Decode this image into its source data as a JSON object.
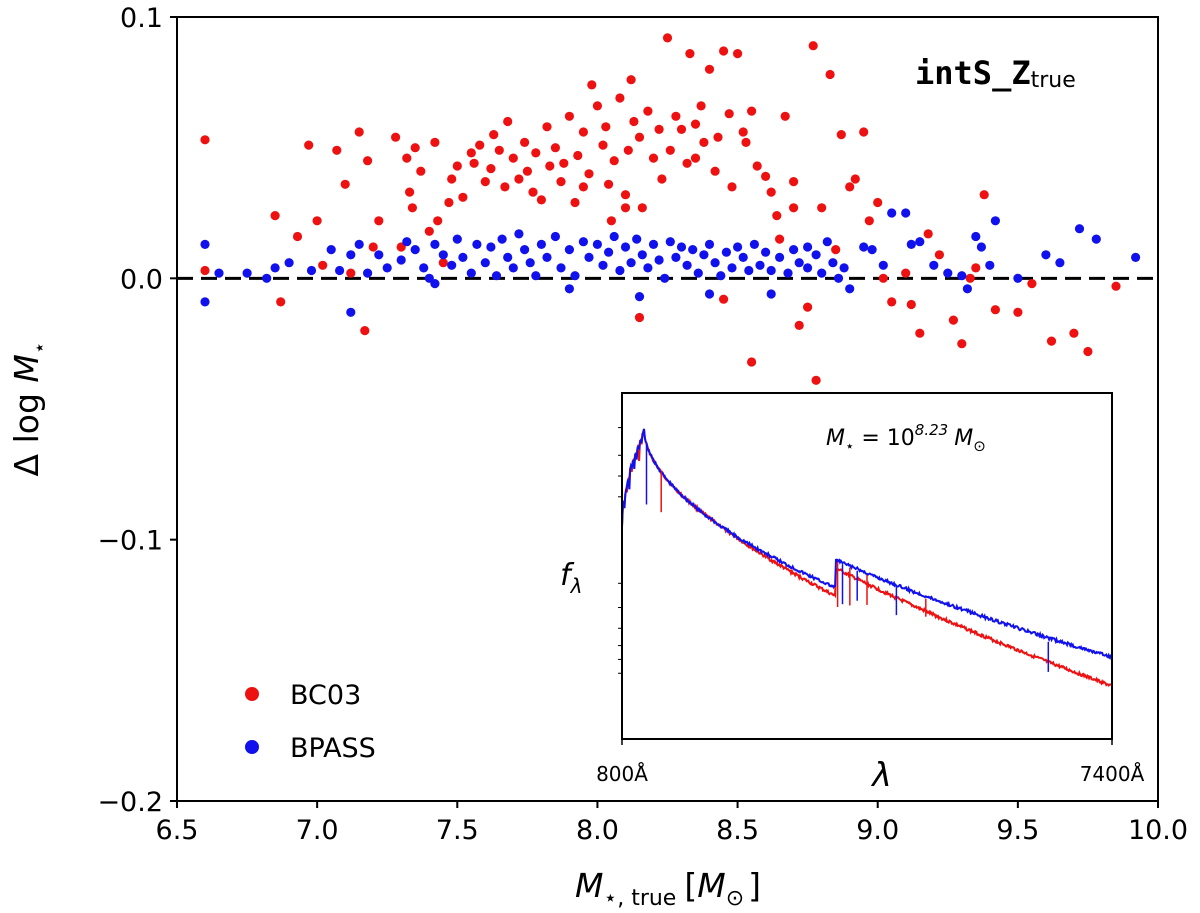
{
  "chart_data": [
    {
      "type": "scatter",
      "title": "",
      "annotation": {
        "code": "intS_Z",
        "subscript": "true"
      },
      "xlabel": {
        "main": "M",
        "sub1": "⋆, true",
        "unit_open": "[",
        "unit_main": "M",
        "unit_sub": "⊙",
        "unit_close": "]"
      },
      "ylabel": {
        "prefix": "Δ log ",
        "main": "M",
        "sub": "⋆"
      },
      "xlim": [
        6.5,
        10.0
      ],
      "ylim": [
        -0.2,
        0.1
      ],
      "xticks": [
        "6.5",
        "7.0",
        "7.5",
        "8.0",
        "8.5",
        "9.0",
        "9.5",
        "10.0"
      ],
      "yticks": [
        "0.1",
        "0.0",
        "−0.1",
        "−0.2"
      ],
      "xtick_values": [
        6.5,
        7.0,
        7.5,
        8.0,
        8.5,
        9.0,
        9.5,
        10.0
      ],
      "ytick_values": [
        0.1,
        0.0,
        -0.1,
        -0.2
      ],
      "reference_line": {
        "y": 0.0,
        "style": "dashed"
      },
      "legend": {
        "position": "bottom-left"
      },
      "series": [
        {
          "name": "BC03",
          "color": "#ee1111",
          "points": [
            [
              6.6,
              0.053
            ],
            [
              6.6,
              0.003
            ],
            [
              6.85,
              0.024
            ],
            [
              6.87,
              -0.009
            ],
            [
              6.93,
              0.016
            ],
            [
              6.97,
              0.051
            ],
            [
              7.0,
              0.022
            ],
            [
              7.02,
              0.005
            ],
            [
              7.07,
              0.049
            ],
            [
              7.1,
              0.036
            ],
            [
              7.12,
              0.002
            ],
            [
              7.15,
              0.056
            ],
            [
              7.17,
              -0.02
            ],
            [
              7.18,
              0.045
            ],
            [
              7.2,
              0.012
            ],
            [
              7.22,
              0.022
            ],
            [
              7.28,
              0.054
            ],
            [
              7.3,
              0.012
            ],
            [
              7.32,
              0.046
            ],
            [
              7.33,
              0.033
            ],
            [
              7.34,
              0.027
            ],
            [
              7.35,
              0.05
            ],
            [
              7.37,
              0.041
            ],
            [
              7.4,
              0.018
            ],
            [
              7.42,
              0.052
            ],
            [
              7.43,
              0.022
            ],
            [
              7.45,
              0.006
            ],
            [
              7.47,
              0.029
            ],
            [
              7.48,
              0.038
            ],
            [
              7.5,
              0.043
            ],
            [
              7.52,
              0.031
            ],
            [
              7.55,
              0.048
            ],
            [
              7.56,
              0.044
            ],
            [
              7.58,
              0.051
            ],
            [
              7.6,
              0.037
            ],
            [
              7.62,
              0.042
            ],
            [
              7.63,
              0.055
            ],
            [
              7.65,
              0.049
            ],
            [
              7.67,
              0.035
            ],
            [
              7.68,
              0.06
            ],
            [
              7.7,
              0.046
            ],
            [
              7.72,
              0.038
            ],
            [
              7.74,
              0.052
            ],
            [
              7.75,
              0.041
            ],
            [
              7.77,
              0.033
            ],
            [
              7.78,
              0.048
            ],
            [
              7.8,
              0.03
            ],
            [
              7.82,
              0.058
            ],
            [
              7.83,
              0.043
            ],
            [
              7.85,
              0.05
            ],
            [
              7.87,
              0.037
            ],
            [
              7.88,
              0.044
            ],
            [
              7.9,
              0.062
            ],
            [
              7.92,
              0.029
            ],
            [
              7.93,
              0.047
            ],
            [
              7.95,
              0.056
            ],
            [
              7.97,
              0.04
            ],
            [
              7.98,
              0.074
            ],
            [
              8.0,
              0.066
            ],
            [
              8.02,
              0.051
            ],
            [
              8.03,
              0.058
            ],
            [
              8.04,
              0.036
            ],
            [
              8.05,
              0.022
            ],
            [
              8.06,
              0.045
            ],
            [
              8.08,
              0.069
            ],
            [
              8.1,
              0.032
            ],
            [
              8.11,
              0.049
            ],
            [
              8.12,
              0.076
            ],
            [
              8.13,
              0.06
            ],
            [
              8.15,
              0.054
            ],
            [
              8.16,
              0.027
            ],
            [
              8.18,
              0.064
            ],
            [
              8.2,
              0.046
            ],
            [
              8.22,
              0.057
            ],
            [
              8.23,
              0.038
            ],
            [
              8.25,
              0.092
            ],
            [
              8.26,
              0.049
            ],
            [
              8.28,
              0.062
            ],
            [
              8.3,
              0.057
            ],
            [
              8.32,
              0.044
            ],
            [
              8.33,
              0.086
            ],
            [
              8.35,
              0.059
            ],
            [
              8.37,
              0.066
            ],
            [
              8.38,
              0.052
            ],
            [
              8.4,
              0.08
            ],
            [
              8.42,
              0.041
            ],
            [
              8.43,
              0.054
            ],
            [
              8.45,
              0.087
            ],
            [
              8.47,
              0.063
            ],
            [
              8.48,
              0.035
            ],
            [
              8.5,
              0.086
            ],
            [
              8.52,
              0.056
            ],
            [
              8.53,
              0.052
            ],
            [
              8.55,
              0.064
            ],
            [
              8.57,
              0.043
            ],
            [
              8.6,
              0.039
            ],
            [
              8.62,
              0.033
            ],
            [
              8.64,
              0.024
            ],
            [
              8.65,
              0.015
            ],
            [
              8.67,
              0.062
            ],
            [
              8.7,
              0.037
            ],
            [
              8.72,
              -0.018
            ],
            [
              8.75,
              -0.011
            ],
            [
              8.77,
              0.089
            ],
            [
              8.78,
              -0.039
            ],
            [
              8.8,
              0.027
            ],
            [
              8.83,
              0.078
            ],
            [
              8.85,
              0.011
            ],
            [
              8.87,
              0.055
            ],
            [
              8.9,
              0.035
            ],
            [
              8.92,
              0.038
            ],
            [
              8.95,
              0.056
            ],
            [
              8.97,
              0.022
            ],
            [
              9.0,
              0.029
            ],
            [
              9.02,
              0.0
            ],
            [
              9.05,
              -0.009
            ],
            [
              9.1,
              0.002
            ],
            [
              9.12,
              -0.01
            ],
            [
              9.15,
              -0.021
            ],
            [
              9.18,
              0.017
            ],
            [
              9.22,
              0.009
            ],
            [
              9.27,
              -0.016
            ],
            [
              9.3,
              -0.025
            ],
            [
              9.33,
              0.0
            ],
            [
              9.35,
              0.004
            ],
            [
              9.38,
              0.032
            ],
            [
              9.42,
              -0.012
            ],
            [
              9.5,
              -0.013
            ],
            [
              9.55,
              -0.002
            ],
            [
              9.62,
              -0.024
            ],
            [
              9.7,
              -0.021
            ],
            [
              9.75,
              -0.028
            ],
            [
              9.85,
              -0.003
            ],
            [
              8.55,
              -0.032
            ],
            [
              8.7,
              0.027
            ],
            [
              8.35,
              0.046
            ],
            [
              7.95,
              0.035
            ],
            [
              8.1,
              0.027
            ],
            [
              8.45,
              -0.008
            ],
            [
              8.15,
              -0.015
            ]
          ]
        },
        {
          "name": "BPASS",
          "color": "#1111ee",
          "points": [
            [
              6.6,
              0.013
            ],
            [
              6.6,
              -0.009
            ],
            [
              6.65,
              0.002
            ],
            [
              6.75,
              0.002
            ],
            [
              6.82,
              0.0
            ],
            [
              6.85,
              0.004
            ],
            [
              6.9,
              0.006
            ],
            [
              6.98,
              0.003
            ],
            [
              7.05,
              0.011
            ],
            [
              7.08,
              0.003
            ],
            [
              7.12,
              0.009
            ],
            [
              7.15,
              0.013
            ],
            [
              7.18,
              0.002
            ],
            [
              7.22,
              0.009
            ],
            [
              7.25,
              0.004
            ],
            [
              7.3,
              0.007
            ],
            [
              7.32,
              0.014
            ],
            [
              7.35,
              0.011
            ],
            [
              7.38,
              0.004
            ],
            [
              7.4,
              0.0
            ],
            [
              7.42,
              0.013
            ],
            [
              7.45,
              0.009
            ],
            [
              7.48,
              0.005
            ],
            [
              7.5,
              0.015
            ],
            [
              7.52,
              0.008
            ],
            [
              7.55,
              0.002
            ],
            [
              7.57,
              0.013
            ],
            [
              7.6,
              0.006
            ],
            [
              7.62,
              0.012
            ],
            [
              7.64,
              0.001
            ],
            [
              7.66,
              0.015
            ],
            [
              7.68,
              0.008
            ],
            [
              7.7,
              0.004
            ],
            [
              7.72,
              0.017
            ],
            [
              7.74,
              0.011
            ],
            [
              7.76,
              0.006
            ],
            [
              7.78,
              0.001
            ],
            [
              7.8,
              0.013
            ],
            [
              7.82,
              0.008
            ],
            [
              7.85,
              0.016
            ],
            [
              7.87,
              0.004
            ],
            [
              7.9,
              0.011
            ],
            [
              7.92,
              0.001
            ],
            [
              7.95,
              0.014
            ],
            [
              7.97,
              0.008
            ],
            [
              8.0,
              0.013
            ],
            [
              8.02,
              0.005
            ],
            [
              8.04,
              0.01
            ],
            [
              8.06,
              0.016
            ],
            [
              8.08,
              0.003
            ],
            [
              8.1,
              0.012
            ],
            [
              8.12,
              0.006
            ],
            [
              8.14,
              0.015
            ],
            [
              8.16,
              0.009
            ],
            [
              8.18,
              0.004
            ],
            [
              8.2,
              0.013
            ],
            [
              8.22,
              0.007
            ],
            [
              8.24,
              0.0
            ],
            [
              8.26,
              0.014
            ],
            [
              8.28,
              0.008
            ],
            [
              8.3,
              0.012
            ],
            [
              8.32,
              0.005
            ],
            [
              8.34,
              0.011
            ],
            [
              8.36,
              0.002
            ],
            [
              8.38,
              0.009
            ],
            [
              8.4,
              0.013
            ],
            [
              8.42,
              0.006
            ],
            [
              8.44,
              0.001
            ],
            [
              8.46,
              0.01
            ],
            [
              8.48,
              0.004
            ],
            [
              8.5,
              0.012
            ],
            [
              8.52,
              0.008
            ],
            [
              8.54,
              0.003
            ],
            [
              8.56,
              0.013
            ],
            [
              8.58,
              0.005
            ],
            [
              8.6,
              0.01
            ],
            [
              8.62,
              0.003
            ],
            [
              8.65,
              0.008
            ],
            [
              8.68,
              0.002
            ],
            [
              8.7,
              0.011
            ],
            [
              8.72,
              0.006
            ],
            [
              8.75,
              0.004
            ],
            [
              8.78,
              0.009
            ],
            [
              8.8,
              0.002
            ],
            [
              8.82,
              0.014
            ],
            [
              8.84,
              0.006
            ],
            [
              8.86,
              0.0
            ],
            [
              8.88,
              0.004
            ],
            [
              8.9,
              -0.004
            ],
            [
              8.95,
              0.012
            ],
            [
              8.98,
              0.011
            ],
            [
              9.02,
              0.005
            ],
            [
              9.05,
              0.025
            ],
            [
              9.1,
              0.025
            ],
            [
              9.12,
              0.013
            ],
            [
              9.15,
              0.014
            ],
            [
              9.2,
              0.005
            ],
            [
              9.25,
              0.002
            ],
            [
              9.3,
              0.001
            ],
            [
              9.35,
              0.016
            ],
            [
              9.37,
              0.012
            ],
            [
              9.4,
              0.005
            ],
            [
              9.42,
              0.022
            ],
            [
              9.5,
              0.0
            ],
            [
              9.6,
              0.009
            ],
            [
              9.65,
              0.006
            ],
            [
              9.72,
              0.019
            ],
            [
              9.78,
              0.015
            ],
            [
              9.92,
              0.008
            ],
            [
              8.15,
              -0.007
            ],
            [
              8.4,
              -0.006
            ],
            [
              7.42,
              -0.002
            ],
            [
              7.12,
              -0.013
            ],
            [
              8.62,
              -0.006
            ],
            [
              9.32,
              -0.004
            ],
            [
              7.9,
              -0.004
            ],
            [
              8.75,
              0.012
            ]
          ]
        }
      ]
    },
    {
      "type": "line",
      "title": "",
      "annotation": {
        "prefix": "M",
        "sub": "⋆",
        "eq": " = 10",
        "exp": "8.23",
        "unit": "M",
        "unit_sub": "⊙"
      },
      "xlabel": "λ",
      "ylabel": {
        "main": "f",
        "sub": "λ"
      },
      "xtick_labels": [
        "800Å",
        "7400Å"
      ],
      "xlim": [
        800,
        7400
      ],
      "yscale": "log",
      "series": [
        {
          "name": "BC03",
          "color": "#ee1111"
        },
        {
          "name": "BPASS",
          "color": "#1111ee"
        }
      ]
    }
  ]
}
